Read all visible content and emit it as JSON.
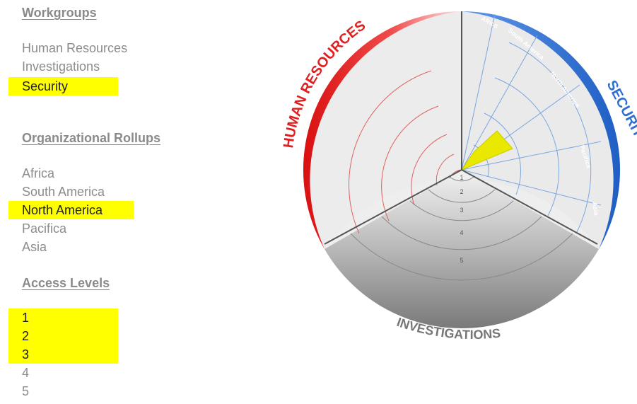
{
  "workgroups": {
    "heading": "Workgroups",
    "items": [
      {
        "label": "Human Resources",
        "selected": false
      },
      {
        "label": "Investigations",
        "selected": false
      },
      {
        "label": "Security",
        "selected": true
      }
    ]
  },
  "rollups": {
    "heading": "Organizational Rollups",
    "items": [
      {
        "label": "Africa",
        "selected": false
      },
      {
        "label": "South America",
        "selected": false
      },
      {
        "label": "North America",
        "selected": true
      },
      {
        "label": "Pacifica",
        "selected": false
      },
      {
        "label": "Asia",
        "selected": false
      }
    ]
  },
  "access": {
    "heading": "Access Levels",
    "items": [
      {
        "label": "1",
        "selected": true
      },
      {
        "label": "2",
        "selected": true
      },
      {
        "label": "3",
        "selected": true
      },
      {
        "label": "4",
        "selected": false
      },
      {
        "label": "5",
        "selected": false
      }
    ]
  },
  "diagram": {
    "sectors": {
      "human_resources": "HUMAN RESOURCES",
      "security": "SECURITY",
      "investigations": "INVESTIGATIONS"
    },
    "security_regions": [
      "Africa",
      "South America",
      "North America",
      "Pacifica",
      "Asia"
    ],
    "levels": [
      "1",
      "2",
      "3",
      "4",
      "5"
    ],
    "highlight": {
      "sector": "Security",
      "region": "North America",
      "levels": [
        "1",
        "2",
        "3"
      ]
    },
    "colors": {
      "human_resources": "#e82020",
      "security": "#2f6fd0",
      "investigations": "#8c8c8c",
      "highlight": "#e8e800",
      "selection": "#ffff00"
    }
  }
}
